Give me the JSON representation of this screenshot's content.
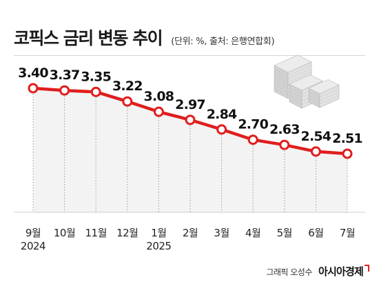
{
  "header": {
    "title": "코픽스 금리 변동 추이",
    "subtitle": "(단위: %, 출처: 은행연합회)"
  },
  "chart_data": {
    "type": "area",
    "categories": [
      "9월",
      "10월",
      "11월",
      "12월",
      "1월",
      "2월",
      "3월",
      "4월",
      "5월",
      "6월",
      "7월"
    ],
    "year_labels": [
      "2024",
      "",
      "",
      "",
      "2025",
      "",
      "",
      "",
      "",
      "",
      ""
    ],
    "values": [
      3.4,
      3.37,
      3.35,
      3.22,
      3.08,
      2.97,
      2.84,
      2.7,
      2.63,
      2.54,
      2.51
    ],
    "value_labels": [
      "3.40",
      "3.37",
      "3.35",
      "3.22",
      "3.08",
      "2.97",
      "2.84",
      "2.70",
      "2.63",
      "2.54",
      "2.51"
    ],
    "line_color": "#e01e1e",
    "fill_color": "#f3f3f3",
    "grid": "vertical dotted",
    "legend": "none",
    "decorative_icon": "stacked-money-icon"
  },
  "credit": {
    "author": "그래픽 오성수",
    "brand": "아시아경제"
  }
}
